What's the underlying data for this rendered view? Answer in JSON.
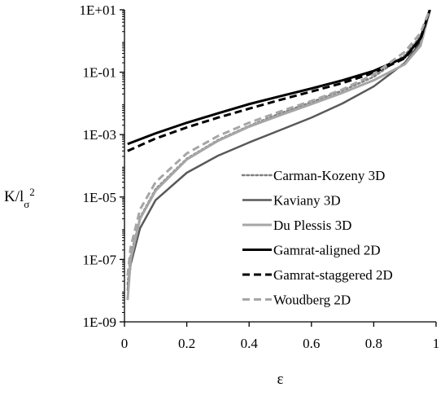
{
  "chart_data": {
    "type": "line",
    "xlabel": "ε",
    "ylabel_base": "K/l",
    "ylabel_sub": "σ",
    "ylabel_sup": "2",
    "xlim": [
      0,
      1
    ],
    "ylim": [
      1e-09,
      10
    ],
    "y_scale": "log",
    "grid": false,
    "legend_position": "lower-right",
    "x_ticks": [
      0,
      0.2,
      0.4,
      0.6,
      0.8,
      1
    ],
    "x_tick_labels": [
      "0",
      "0.2",
      "0.4",
      "0.6",
      "0.8",
      "1"
    ],
    "y_ticks": [
      1e-09,
      1e-07,
      1e-05,
      0.001,
      0.1,
      10
    ],
    "y_tick_labels": [
      "1E-09",
      "1E-07",
      "1E-05",
      "1E-03",
      "1E-01",
      "1E+01"
    ],
    "series": [
      {
        "name": "Carman-Kozeny 3D",
        "color": "#7f7f7f",
        "dash": "dot",
        "width": 2.5,
        "x": [
          0.01,
          0.02,
          0.05,
          0.1,
          0.2,
          0.3,
          0.4,
          0.5,
          0.6,
          0.7,
          0.8,
          0.9,
          0.95,
          0.98
        ],
        "y": [
          1.6e-08,
          1.3e-07,
          2.2e-06,
          1.8e-05,
          0.00017,
          0.00067,
          0.0019,
          0.0048,
          0.011,
          0.026,
          0.071,
          0.35,
          1.4,
          9
        ]
      },
      {
        "name": "Kaviany 3D",
        "color": "#595959",
        "dash": "solid",
        "width": 2.5,
        "x": [
          0.01,
          0.02,
          0.05,
          0.1,
          0.2,
          0.3,
          0.4,
          0.5,
          0.6,
          0.7,
          0.8,
          0.9,
          0.95,
          0.98
        ],
        "y": [
          1e-08,
          7e-08,
          1e-06,
          8e-06,
          6e-05,
          0.00021,
          0.00056,
          0.0014,
          0.0035,
          0.01,
          0.035,
          0.2,
          0.9,
          10
        ]
      },
      {
        "name": "Du Plessis 3D",
        "color": "#a6a6a6",
        "dash": "solid",
        "width": 3,
        "x": [
          0.01,
          0.02,
          0.05,
          0.1,
          0.2,
          0.3,
          0.4,
          0.5,
          0.6,
          0.7,
          0.8,
          0.9,
          0.95,
          0.98
        ],
        "y": [
          5e-09,
          1e-07,
          2e-06,
          1.6e-05,
          0.00016,
          0.00063,
          0.0018,
          0.0042,
          0.0095,
          0.022,
          0.055,
          0.18,
          0.7,
          9.5
        ]
      },
      {
        "name": "Gamrat-aligned 2D",
        "color": "#000000",
        "dash": "solid",
        "width": 3,
        "x": [
          0.01,
          0.1,
          0.2,
          0.3,
          0.4,
          0.5,
          0.6,
          0.7,
          0.8,
          0.9,
          0.95,
          0.98
        ],
        "y": [
          0.0005,
          0.0011,
          0.0024,
          0.0048,
          0.0095,
          0.017,
          0.03,
          0.055,
          0.11,
          0.3,
          1.2,
          10
        ]
      },
      {
        "name": "Gamrat-staggered 2D",
        "color": "#000000",
        "dash": "dash",
        "width": 3,
        "x": [
          0.01,
          0.1,
          0.2,
          0.3,
          0.4,
          0.5,
          0.6,
          0.7,
          0.8,
          0.9,
          0.95,
          0.98
        ],
        "y": [
          0.0003,
          0.00075,
          0.0017,
          0.0035,
          0.0068,
          0.013,
          0.024,
          0.045,
          0.095,
          0.28,
          1.1,
          10
        ]
      },
      {
        "name": "Woudberg 2D",
        "color": "#a6a6a6",
        "dash": "dash",
        "width": 3,
        "x": [
          0.01,
          0.02,
          0.05,
          0.1,
          0.2,
          0.3,
          0.4,
          0.5,
          0.6,
          0.7,
          0.8,
          0.9,
          0.95,
          0.98
        ],
        "y": [
          3e-08,
          2.5e-07,
          4e-06,
          3e-05,
          0.00025,
          0.0009,
          0.0024,
          0.0055,
          0.012,
          0.028,
          0.085,
          0.45,
          1.8,
          10
        ]
      }
    ]
  }
}
